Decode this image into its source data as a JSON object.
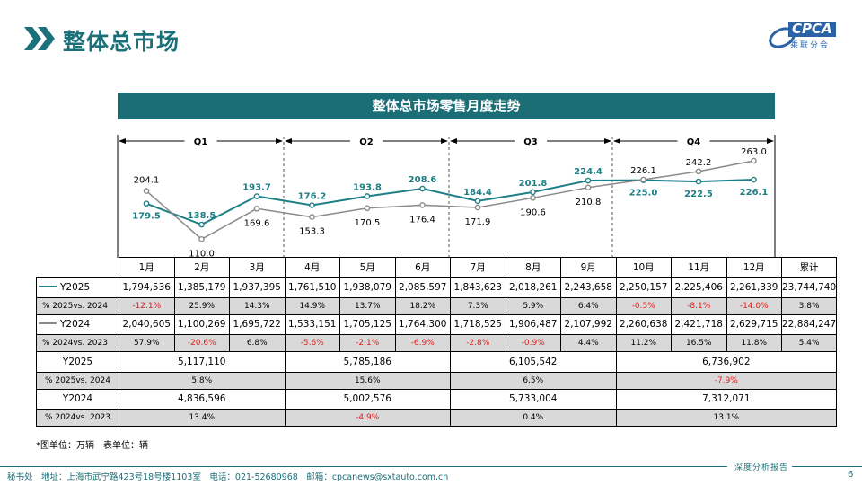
{
  "header": {
    "title": "整体总市场"
  },
  "logo": {
    "text": "CPCA",
    "subtitle": "乘联分会"
  },
  "banner": {
    "title": "整体总市场零售月度走势"
  },
  "colors": {
    "teal": "#1c7079",
    "series2025": "#1f7f86",
    "series2024": "#8a8a8a",
    "negative": "#e02020",
    "pct_row_bg": "#d9d9d9"
  },
  "chart_data": {
    "type": "line",
    "title": "整体总市场零售月度走势",
    "categories": [
      "1月",
      "2月",
      "3月",
      "4月",
      "5月",
      "6月",
      "7月",
      "8月",
      "9月",
      "10月",
      "11月",
      "12月"
    ],
    "quarters": [
      "Q1",
      "Q2",
      "Q3",
      "Q4"
    ],
    "series": [
      {
        "name": "Y2025",
        "values": [
          179.5,
          138.5,
          193.7,
          176.2,
          193.8,
          208.6,
          184.4,
          201.8,
          224.4,
          225.0,
          222.5,
          226.1
        ],
        "color": "#1f7f86"
      },
      {
        "name": "Y2024",
        "values": [
          204.1,
          110.0,
          169.6,
          153.3,
          170.5,
          176.4,
          171.9,
          190.6,
          210.8,
          226.1,
          242.2,
          263.0
        ],
        "color": "#8a8a8a"
      }
    ],
    "ylim": [
      100,
      270
    ],
    "legend": "in-table",
    "grid": false
  },
  "table": {
    "months": [
      "1月",
      "2月",
      "3月",
      "4月",
      "5月",
      "6月",
      "7月",
      "8月",
      "9月",
      "10月",
      "11月",
      "12月"
    ],
    "cumulative_label": "累计",
    "monthly_rows": [
      {
        "label": "Y2025",
        "legend": true,
        "legend_color": "#1f7f86",
        "values": [
          "1,794,536",
          "1,385,179",
          "1,937,395",
          "1,761,510",
          "1,938,079",
          "2,085,597",
          "1,843,623",
          "2,018,261",
          "2,243,658",
          "2,250,157",
          "2,225,406",
          "2,261,339",
          "23,744,740"
        ]
      },
      {
        "label": "% 2025vs. 2024",
        "pct": true,
        "values": [
          "-12.1%",
          "25.9%",
          "14.3%",
          "14.9%",
          "13.7%",
          "18.2%",
          "7.3%",
          "5.9%",
          "6.4%",
          "-0.5%",
          "-8.1%",
          "-14.0%",
          "3.8%"
        ]
      },
      {
        "label": "Y2024",
        "legend": true,
        "legend_color": "#8a8a8a",
        "values": [
          "2,040,605",
          "1,100,269",
          "1,695,722",
          "1,533,151",
          "1,705,125",
          "1,764,300",
          "1,718,525",
          "1,906,487",
          "2,107,992",
          "2,260,638",
          "2,421,718",
          "2,629,715",
          "22,884,247"
        ]
      },
      {
        "label": "% 2024vs. 2023",
        "pct": true,
        "values": [
          "57.9%",
          "-20.6%",
          "6.8%",
          "-5.6%",
          "-2.1%",
          "-6.9%",
          "-2.8%",
          "-0.9%",
          "4.4%",
          "11.2%",
          "16.5%",
          "11.8%",
          "5.4%"
        ]
      }
    ],
    "quarter_rows": [
      {
        "label": "Y2025",
        "values": [
          "5,117,110",
          "5,785,186",
          "6,105,542",
          "6,736,902"
        ]
      },
      {
        "label": "% 2025vs. 2024",
        "pct": true,
        "values": [
          "5.8%",
          "15.6%",
          "6.5%",
          "-7.9%"
        ]
      },
      {
        "label": "Y2024",
        "values": [
          "4,836,596",
          "5,002,576",
          "5,733,004",
          "7,312,071"
        ]
      },
      {
        "label": "% 2024vs. 2023",
        "pct": true,
        "values": [
          "13.4%",
          "-4.9%",
          "0.4%",
          "13.1%"
        ]
      }
    ]
  },
  "footnote": "*图单位：万辆　表单位：辆",
  "footer": {
    "contact": "秘书处　地址：上海市武宁路423号18号楼1103室　电话：021-52680968　邮箱：cpcanews@sxtauto.com.cn",
    "tag": "深度分析报告",
    "page": "6"
  }
}
